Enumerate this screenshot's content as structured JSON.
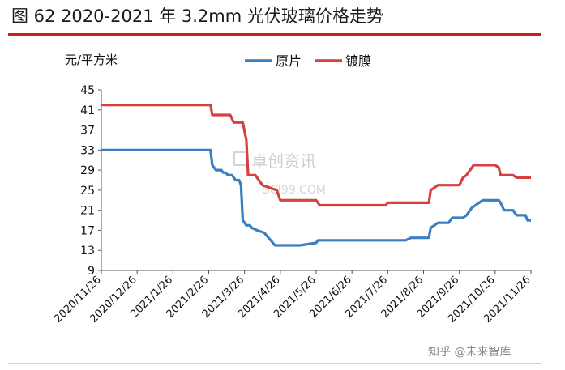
{
  "figure": {
    "title": "图 62 2020-2021 年 3.2mm 光伏玻璃价格走势",
    "watermark": "卓创资讯",
    "watermark_sub": "SCI99.COM",
    "credit": "知乎 @未来智库"
  },
  "chart_data": {
    "type": "line",
    "title": "",
    "xlabel": "",
    "ylabel": "元/平方米",
    "ylim": [
      9,
      45
    ],
    "yticks": [
      9,
      13,
      17,
      21,
      25,
      29,
      33,
      37,
      41,
      45
    ],
    "categories": [
      "2020/11/26",
      "2020/12/26",
      "2021/1/26",
      "2021/2/26",
      "2021/3/26",
      "2021/4/26",
      "2021/5/26",
      "2021/6/26",
      "2021/7/26",
      "2021/8/26",
      "2021/9/26",
      "2021/10/26",
      "2021/11/26"
    ],
    "grid": false,
    "legend": "top-center",
    "series": [
      {
        "name": "原片",
        "color": "#3a7fbf",
        "x": [
          0,
          1,
          2,
          3.05,
          3.1,
          3.2,
          3.35,
          3.4,
          3.45,
          3.55,
          3.65,
          3.75,
          3.85,
          3.9,
          3.95,
          4.05,
          4.15,
          4.2,
          4.35,
          4.55,
          4.85,
          5.1,
          5.2,
          5.25,
          5.55,
          6.0,
          6.05,
          6.1,
          6.5,
          7.0,
          7.5,
          8.0,
          8.5,
          8.65,
          9.0,
          9.15,
          9.2,
          9.3,
          9.4,
          9.45,
          9.55,
          9.7,
          9.8,
          9.9,
          10.0,
          10.1,
          10.2,
          10.25,
          10.35,
          10.45,
          10.55,
          10.65,
          11.0,
          11.1,
          11.15,
          11.25,
          11.35,
          11.5,
          11.6,
          11.85,
          11.9,
          12.0
        ],
        "values": [
          33,
          33,
          33,
          33,
          30,
          29,
          29,
          28.5,
          28.5,
          28,
          28,
          27,
          27,
          26,
          19,
          18,
          18,
          17.5,
          17,
          16.5,
          14,
          14,
          14,
          14,
          14,
          14.5,
          15,
          15,
          15,
          15,
          15,
          15,
          15,
          15.5,
          15.5,
          15.5,
          17.5,
          18,
          18.5,
          18.5,
          18.5,
          18.5,
          19.5,
          19.5,
          19.5,
          19.5,
          20,
          20.5,
          21.5,
          22,
          22.5,
          23,
          23,
          23,
          22.5,
          21,
          21,
          21,
          20,
          20,
          19,
          19
        ]
      },
      {
        "name": "镀膜",
        "color": "#d6403e",
        "x": [
          0,
          1,
          2,
          3.05,
          3.1,
          3.3,
          3.6,
          3.7,
          3.95,
          4.05,
          4.1,
          4.3,
          4.5,
          4.9,
          5.0,
          5.5,
          6.0,
          6.05,
          6.1,
          6.5,
          7.0,
          7.5,
          7.95,
          8.0,
          8.5,
          8.65,
          9.0,
          9.15,
          9.2,
          9.3,
          9.4,
          9.5,
          9.6,
          9.95,
          10.0,
          10.1,
          10.2,
          10.4,
          10.6,
          10.9,
          11.0,
          11.1,
          11.15,
          11.4,
          11.5,
          11.6,
          12.0
        ],
        "values": [
          42,
          42,
          42,
          42,
          40,
          40,
          40,
          38.5,
          38.5,
          35,
          28,
          28,
          26,
          25,
          23,
          23,
          23,
          22.5,
          22,
          22,
          22,
          22,
          22,
          22.5,
          22.5,
          22.5,
          22.5,
          22.5,
          25,
          25.5,
          26,
          26,
          26,
          26,
          26,
          27.5,
          28,
          30,
          30,
          30,
          30,
          29.5,
          28,
          28,
          28,
          27.5,
          27.5
        ]
      }
    ]
  }
}
